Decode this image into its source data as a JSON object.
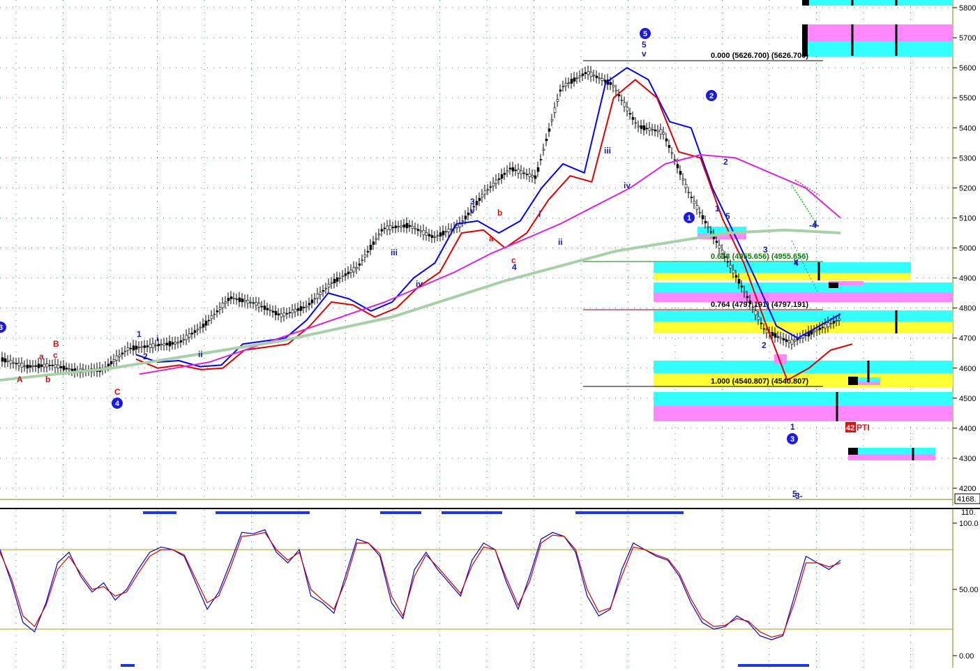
{
  "chart_data": [
    {
      "type": "candlestick",
      "panel": "price",
      "y_axis_ticks": [
        "5800",
        "5700",
        "5600",
        "5500",
        "5400",
        "5300",
        "5200",
        "5100",
        "5000",
        "4900",
        "4800",
        "4700",
        "4600",
        "4500",
        "4400",
        "4300",
        "4200"
      ],
      "ylim": [
        4168,
        5830
      ],
      "last_price_label": "4168.",
      "fib_levels": [
        {
          "text": "0.000 (5626.700) (5626.700)",
          "value": 5626.7
        },
        {
          "text": "0.618 (4955.656) (4955.656)",
          "value": 4955.656
        },
        {
          "text": "0.764 (4797.191) (4797.191)",
          "value": 4797.191
        },
        {
          "text": "1.000 (4540.807) (4540.807)",
          "value": 4540.807
        }
      ],
      "wave_labels_blue": [
        "5",
        "v",
        "1",
        "2",
        "i",
        "ii",
        "3",
        "v",
        "iii",
        "iv",
        "4",
        "i",
        "ii",
        "iii",
        "iv",
        "5",
        "v",
        "1",
        "2",
        "2",
        "1",
        "3",
        "4",
        "5",
        "4",
        "-3-",
        "-4-"
      ],
      "wave_labels_red": [
        "A",
        "a",
        "b",
        "B",
        "c",
        "C",
        "a",
        "b",
        "c"
      ],
      "circled_wave_labels": [
        "3",
        "4",
        "5",
        "1",
        "2",
        "3"
      ],
      "pti_label": "PTI",
      "pti_value": "42",
      "series": [
        {
          "color": "#0000ff",
          "values": [
            4645,
            4620,
            4625,
            4605,
            4610,
            4680,
            4690,
            4700,
            4760,
            4850,
            4830,
            4790,
            4820,
            4900,
            4950,
            5080,
            5090,
            5050,
            5090,
            5200,
            5280,
            5250,
            5550,
            5600,
            5560,
            5420,
            5400,
            5200,
            5050,
            4900,
            4740,
            4700,
            4740,
            4780
          ]
        },
        {
          "color": "#e00000",
          "values": [
            4630,
            4600,
            4610,
            4595,
            4600,
            4660,
            4670,
            4680,
            4740,
            4820,
            4810,
            4770,
            4800,
            4870,
            4920,
            5050,
            5060,
            5000,
            5050,
            5160,
            5240,
            5220,
            5500,
            5560,
            5500,
            5320,
            5300,
            5100,
            4950,
            4750,
            4560,
            4600,
            4660,
            4680
          ]
        },
        {
          "color": "#e020e0",
          "values": [
            4580,
            4600,
            4620,
            4660,
            4700,
            4740,
            4780,
            4820,
            4870,
            4920,
            4980,
            5030,
            5080,
            5140,
            5200,
            5280,
            5310,
            5300,
            5250,
            5200,
            5100
          ]
        },
        {
          "color": "#a8d0a8",
          "values": [
            4560,
            4580,
            4600,
            4630,
            4660,
            4690,
            4730,
            4770,
            4830,
            4890,
            4940,
            4990,
            5020,
            5050,
            5060,
            5050
          ]
        }
      ]
    },
    {
      "type": "line",
      "panel": "oscillator",
      "y_axis_ticks": [
        "100.0",
        "50.00",
        "0.00"
      ],
      "top_label": "110.",
      "ylim": [
        0,
        110
      ],
      "levels": [
        80,
        20
      ],
      "series": [
        {
          "color": "#0000cc",
          "values": [
            80,
            55,
            25,
            18,
            40,
            70,
            78,
            60,
            48,
            55,
            42,
            50,
            65,
            78,
            82,
            80,
            75,
            55,
            35,
            48,
            70,
            93,
            92,
            95,
            78,
            70,
            80,
            45,
            40,
            32,
            60,
            88,
            85,
            75,
            40,
            28,
            65,
            78,
            65,
            55,
            45,
            72,
            85,
            80,
            55,
            35,
            60,
            88,
            93,
            90,
            78,
            45,
            30,
            35,
            65,
            85,
            80,
            75,
            72,
            60,
            40,
            25,
            20,
            22,
            30,
            25,
            15,
            12,
            15,
            45,
            75,
            70,
            65,
            72
          ]
        },
        {
          "color": "#cc0000",
          "values": [
            78,
            58,
            30,
            22,
            38,
            65,
            75,
            62,
            50,
            52,
            45,
            48,
            62,
            75,
            80,
            80,
            76,
            58,
            40,
            45,
            66,
            90,
            91,
            93,
            80,
            72,
            78,
            50,
            42,
            35,
            56,
            85,
            85,
            77,
            45,
            30,
            60,
            76,
            67,
            57,
            47,
            68,
            82,
            80,
            58,
            38,
            56,
            85,
            91,
            90,
            80,
            50,
            33,
            36,
            60,
            82,
            80,
            76,
            73,
            62,
            43,
            28,
            22,
            23,
            28,
            26,
            18,
            14,
            16,
            40,
            70,
            70,
            67,
            70
          ]
        }
      ]
    }
  ]
}
